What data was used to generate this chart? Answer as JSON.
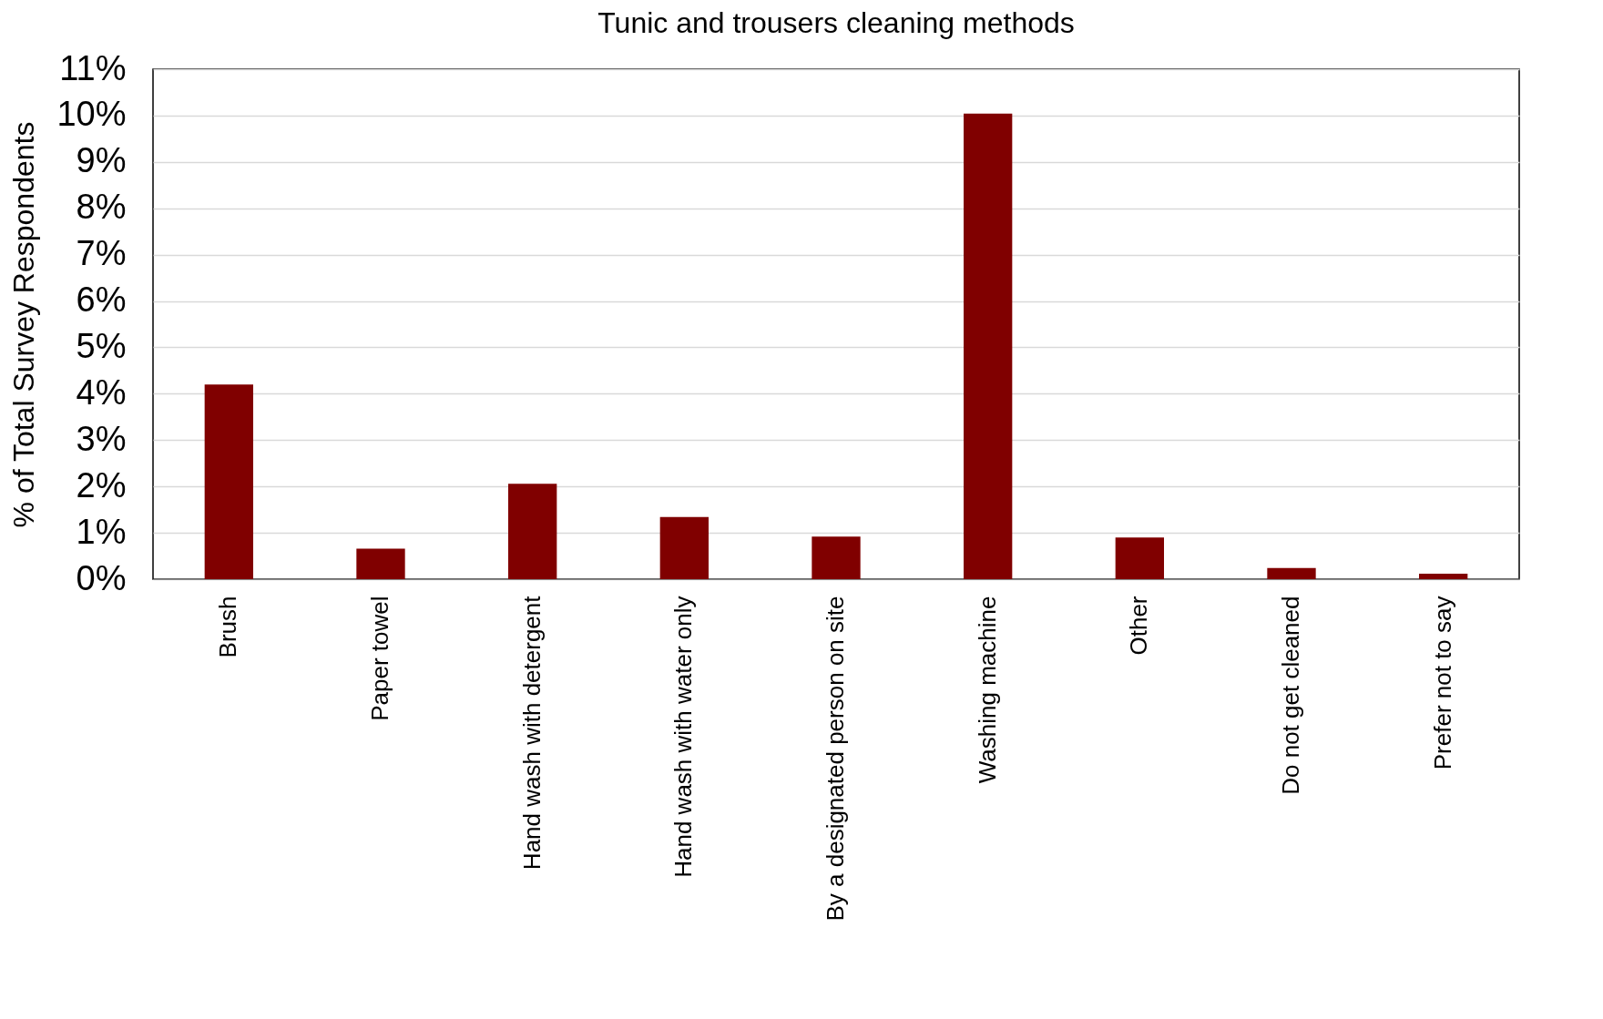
{
  "chart_data": {
    "type": "bar",
    "title": "Tunic and trousers cleaning methods",
    "ylabel": "% of Total Survey Respondents",
    "categories": [
      "Brush",
      "Paper towel",
      "Hand wash with detergent",
      "Hand wash with water only",
      "By a designated person on site",
      "Washing machine",
      "Other",
      "Do not get cleaned",
      "Prefer not to say"
    ],
    "values": [
      4.2,
      0.66,
      2.06,
      1.34,
      0.92,
      10.04,
      0.9,
      0.24,
      0.12
    ],
    "color": "#800000",
    "ylim": [
      0,
      11
    ],
    "yticks": [
      {
        "value": 0,
        "label": "0%"
      },
      {
        "value": 1,
        "label": "1%"
      },
      {
        "value": 2,
        "label": "2%"
      },
      {
        "value": 3,
        "label": "3%"
      },
      {
        "value": 4,
        "label": "4%"
      },
      {
        "value": 5,
        "label": "5%"
      },
      {
        "value": 6,
        "label": "6%"
      },
      {
        "value": 7,
        "label": "7%"
      },
      {
        "value": 8,
        "label": "8%"
      },
      {
        "value": 9,
        "label": "9%"
      },
      {
        "value": 10,
        "label": "10%"
      },
      {
        "value": 11,
        "label": "11%"
      }
    ],
    "grid": "y"
  }
}
